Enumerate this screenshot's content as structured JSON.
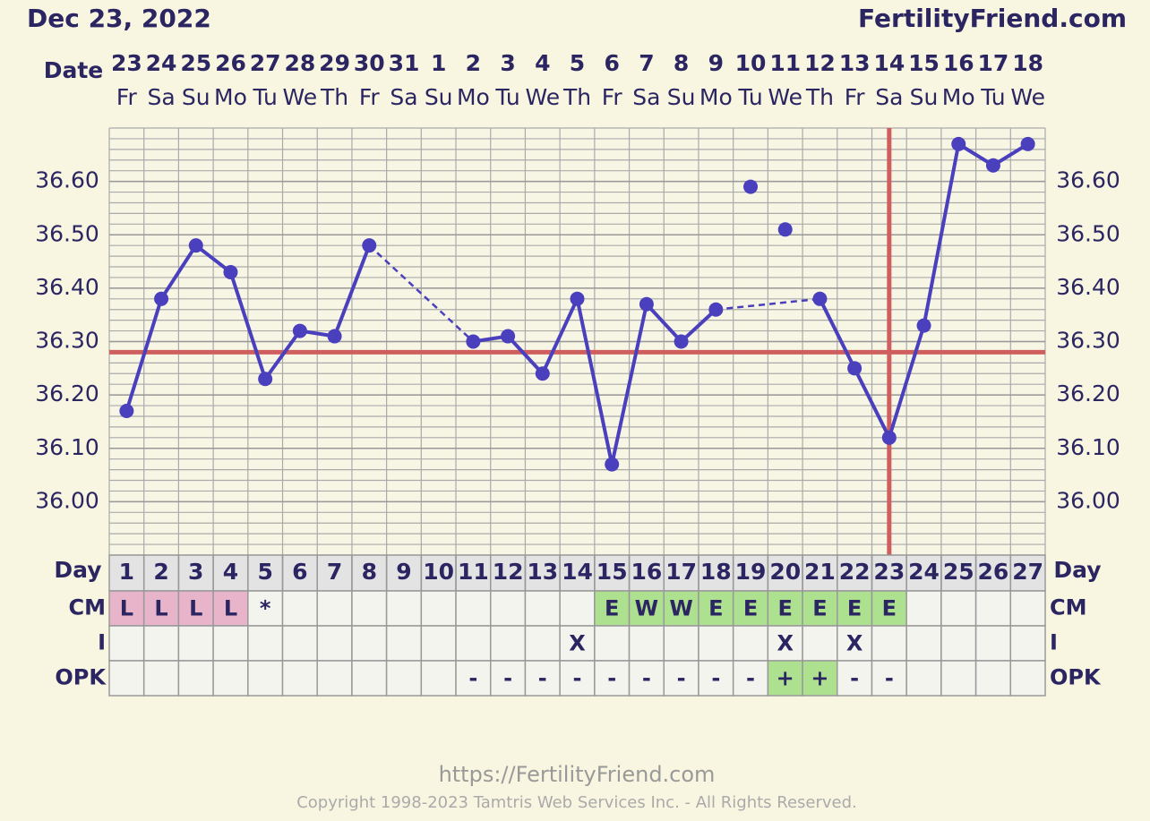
{
  "header": {
    "date": "Dec 23, 2022",
    "site": "FertilityFriend.com"
  },
  "footer": {
    "url": "https://FertilityFriend.com",
    "copyright": "Copyright 1998-2023 Tamtris Web Services Inc. - All Rights Reserved."
  },
  "chart_data": {
    "type": "line",
    "date_label": "Date",
    "day_label": "Day",
    "dates": [
      23,
      24,
      25,
      26,
      27,
      28,
      29,
      30,
      31,
      1,
      2,
      3,
      4,
      5,
      6,
      7,
      8,
      9,
      10,
      11,
      12,
      13,
      14,
      15,
      16,
      17,
      18
    ],
    "weekdays": [
      "Fr",
      "Sa",
      "Su",
      "Mo",
      "Tu",
      "We",
      "Th",
      "Fr",
      "Sa",
      "Su",
      "Mo",
      "Tu",
      "We",
      "Th",
      "Fr",
      "Sa",
      "Su",
      "Mo",
      "Tu",
      "We",
      "Th",
      "Fr",
      "Sa",
      "Su",
      "Mo",
      "Tu",
      "We"
    ],
    "days": [
      1,
      2,
      3,
      4,
      5,
      6,
      7,
      8,
      9,
      10,
      11,
      12,
      13,
      14,
      15,
      16,
      17,
      18,
      19,
      20,
      21,
      22,
      23,
      24,
      25,
      26,
      27
    ],
    "series": [
      {
        "name": "temperature",
        "color": "#4a3fbd",
        "values": [
          36.17,
          36.38,
          36.48,
          36.43,
          36.23,
          36.32,
          36.31,
          36.48,
          null,
          null,
          36.3,
          36.31,
          36.24,
          36.38,
          36.07,
          36.37,
          36.3,
          36.36,
          null,
          null,
          36.38,
          36.25,
          36.12,
          36.33,
          36.67,
          36.63,
          36.67
        ]
      },
      {
        "name": "discarded",
        "color": "#4a3fbd",
        "values": [
          null,
          null,
          null,
          null,
          null,
          null,
          null,
          null,
          null,
          null,
          null,
          null,
          null,
          null,
          null,
          null,
          null,
          null,
          36.59,
          36.51,
          null,
          null,
          null,
          null,
          null,
          null,
          null
        ]
      }
    ],
    "ylim": [
      35.9,
      36.7
    ],
    "yticks": [
      {
        "value": 36.0,
        "label": "36.00"
      },
      {
        "value": 36.1,
        "label": "36.10"
      },
      {
        "value": 36.2,
        "label": "36.20"
      },
      {
        "value": 36.3,
        "label": "36.30"
      },
      {
        "value": 36.4,
        "label": "36.40"
      },
      {
        "value": 36.5,
        "label": "36.50"
      },
      {
        "value": 36.6,
        "label": "36.60"
      }
    ],
    "coverline": 36.28,
    "ovulation_day": 23,
    "marker_color": "#cf5f5f",
    "rows": [
      {
        "label": "CM",
        "cells": [
          "L",
          "L",
          "L",
          "L",
          "*",
          null,
          null,
          null,
          null,
          null,
          null,
          null,
          null,
          null,
          "E",
          "W",
          "W",
          "E",
          "E",
          "E",
          "E",
          "E",
          "E",
          null,
          null,
          null,
          null
        ]
      },
      {
        "label": "I",
        "cells": [
          null,
          null,
          null,
          null,
          null,
          null,
          null,
          null,
          null,
          null,
          null,
          null,
          null,
          "X",
          null,
          null,
          null,
          null,
          null,
          "X",
          null,
          "X",
          null,
          null,
          null,
          null,
          null
        ]
      },
      {
        "label": "OPK",
        "cells": [
          null,
          null,
          null,
          null,
          null,
          null,
          null,
          null,
          null,
          null,
          "-",
          "-",
          "-",
          "-",
          "-",
          "-",
          "-",
          "-",
          "-",
          "+",
          "+",
          "-",
          "-",
          null,
          null,
          null,
          null
        ]
      }
    ],
    "cell_colors": {
      "L": "#e8b4c9",
      "E": "#ade190",
      "W": "#ade190",
      "+": "#ade190"
    }
  }
}
